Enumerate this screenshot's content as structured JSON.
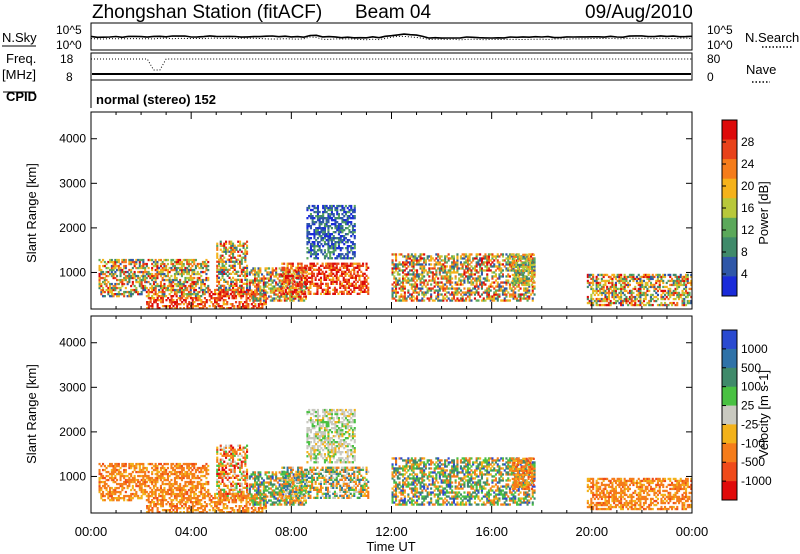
{
  "header": {
    "station": "Zhongshan Station (fitACF)",
    "beam": "Beam 04",
    "date": "09/Aug/2010"
  },
  "mini_panels": {
    "nsky_label": "N.Sky",
    "nsky_ticks": [
      "10^5",
      "10^0"
    ],
    "nsearch_label": "N.Search",
    "nsearch_ticks": [
      "10^5",
      "10^0"
    ],
    "freq_label": "Freq.",
    "freq_unit": "[MHz]",
    "freq_ticks": [
      "18",
      "8"
    ],
    "nave_label": "Nave",
    "nave_ticks": [
      "80",
      "0"
    ],
    "cpid_label": "CPID",
    "cpid_text": "normal (stereo) 152"
  },
  "colors": {
    "power": [
      "#1a2bd9",
      "#2f57a8",
      "#3f8a6a",
      "#5ba85a",
      "#b8c83a",
      "#f5b21a",
      "#f57c1a",
      "#e8421a",
      "#dd0a0a"
    ],
    "velocity": [
      "#2a4ad0",
      "#2f72a8",
      "#3f8a6a",
      "#49c142",
      "#c9c9c0",
      "#f3b21a",
      "#f57c1a",
      "#ef4a1a",
      "#e00a0a"
    ]
  },
  "chart_data": [
    {
      "type": "heatmap",
      "name": "Power",
      "ylabel": "Slant Range [km]",
      "xlabel": "Time UT",
      "x_ticks": [
        "00:00",
        "04:00",
        "08:00",
        "12:00",
        "16:00",
        "20:00",
        "00:00"
      ],
      "xlim_hours": [
        0,
        24
      ],
      "y_ticks": [
        1000,
        2000,
        3000,
        4000
      ],
      "ylim": [
        180,
        4600
      ],
      "colorbar": {
        "label": "Power [dB]",
        "ticks": [
          "4",
          "8",
          "12",
          "16",
          "20",
          "24",
          "28"
        ],
        "range": [
          0,
          30
        ]
      },
      "regions": [
        {
          "t": [
            0.3,
            4.7
          ],
          "r": [
            450,
            1300
          ],
          "level": "mixed"
        },
        {
          "t": [
            2.2,
            4.6
          ],
          "r": [
            180,
            450
          ],
          "level": "high"
        },
        {
          "t": [
            5.0,
            6.2
          ],
          "r": [
            500,
            1700
          ],
          "level": "mixed"
        },
        {
          "t": [
            4.7,
            7.0
          ],
          "r": [
            180,
            600
          ],
          "level": "high"
        },
        {
          "t": [
            6.3,
            8.6
          ],
          "r": [
            350,
            1100
          ],
          "level": "mixed"
        },
        {
          "t": [
            7.6,
            11.1
          ],
          "r": [
            500,
            1200
          ],
          "level": "high"
        },
        {
          "t": [
            8.6,
            10.5
          ],
          "r": [
            1300,
            2500
          ],
          "level": "low"
        },
        {
          "t": [
            12.0,
            17.7
          ],
          "r": [
            350,
            1400
          ],
          "level": "mixed"
        },
        {
          "t": [
            16.8,
            17.7
          ],
          "r": [
            700,
            1400
          ],
          "level": "mid"
        },
        {
          "t": [
            19.8,
            24.0
          ],
          "r": [
            250,
            950
          ],
          "level": "mixed"
        }
      ]
    },
    {
      "type": "heatmap",
      "name": "Velocity",
      "ylabel": "Slant Range [km]",
      "xlabel": "Time UT",
      "x_ticks": [
        "00:00",
        "04:00",
        "08:00",
        "12:00",
        "16:00",
        "20:00",
        "00:00"
      ],
      "xlim_hours": [
        0,
        24
      ],
      "y_ticks": [
        1000,
        2000,
        3000,
        4000
      ],
      "ylim": [
        180,
        4600
      ],
      "colorbar": {
        "label": "Velocity [m s-1]",
        "ticks": [
          "1000",
          "500",
          "100",
          "25",
          "-25",
          "-100",
          "-500",
          "-1000"
        ],
        "range": [
          -1500,
          1500
        ]
      },
      "regions": [
        {
          "t": [
            0.3,
            4.7
          ],
          "r": [
            450,
            1300
          ],
          "level": "neg"
        },
        {
          "t": [
            2.2,
            4.6
          ],
          "r": [
            180,
            450
          ],
          "level": "neg"
        },
        {
          "t": [
            5.0,
            6.2
          ],
          "r": [
            500,
            1700
          ],
          "level": "mixedneg"
        },
        {
          "t": [
            4.7,
            7.0
          ],
          "r": [
            180,
            600
          ],
          "level": "neg"
        },
        {
          "t": [
            6.3,
            8.6
          ],
          "r": [
            350,
            1100
          ],
          "level": "mixedpos"
        },
        {
          "t": [
            7.6,
            11.1
          ],
          "r": [
            500,
            1200
          ],
          "level": "mixed"
        },
        {
          "t": [
            8.6,
            10.5
          ],
          "r": [
            1300,
            2500
          ],
          "level": "gray"
        },
        {
          "t": [
            12.0,
            17.7
          ],
          "r": [
            350,
            1400
          ],
          "level": "mixedpos"
        },
        {
          "t": [
            16.8,
            17.7
          ],
          "r": [
            700,
            1400
          ],
          "level": "neg"
        },
        {
          "t": [
            19.8,
            24.0
          ],
          "r": [
            250,
            950
          ],
          "level": "neg"
        }
      ]
    }
  ]
}
